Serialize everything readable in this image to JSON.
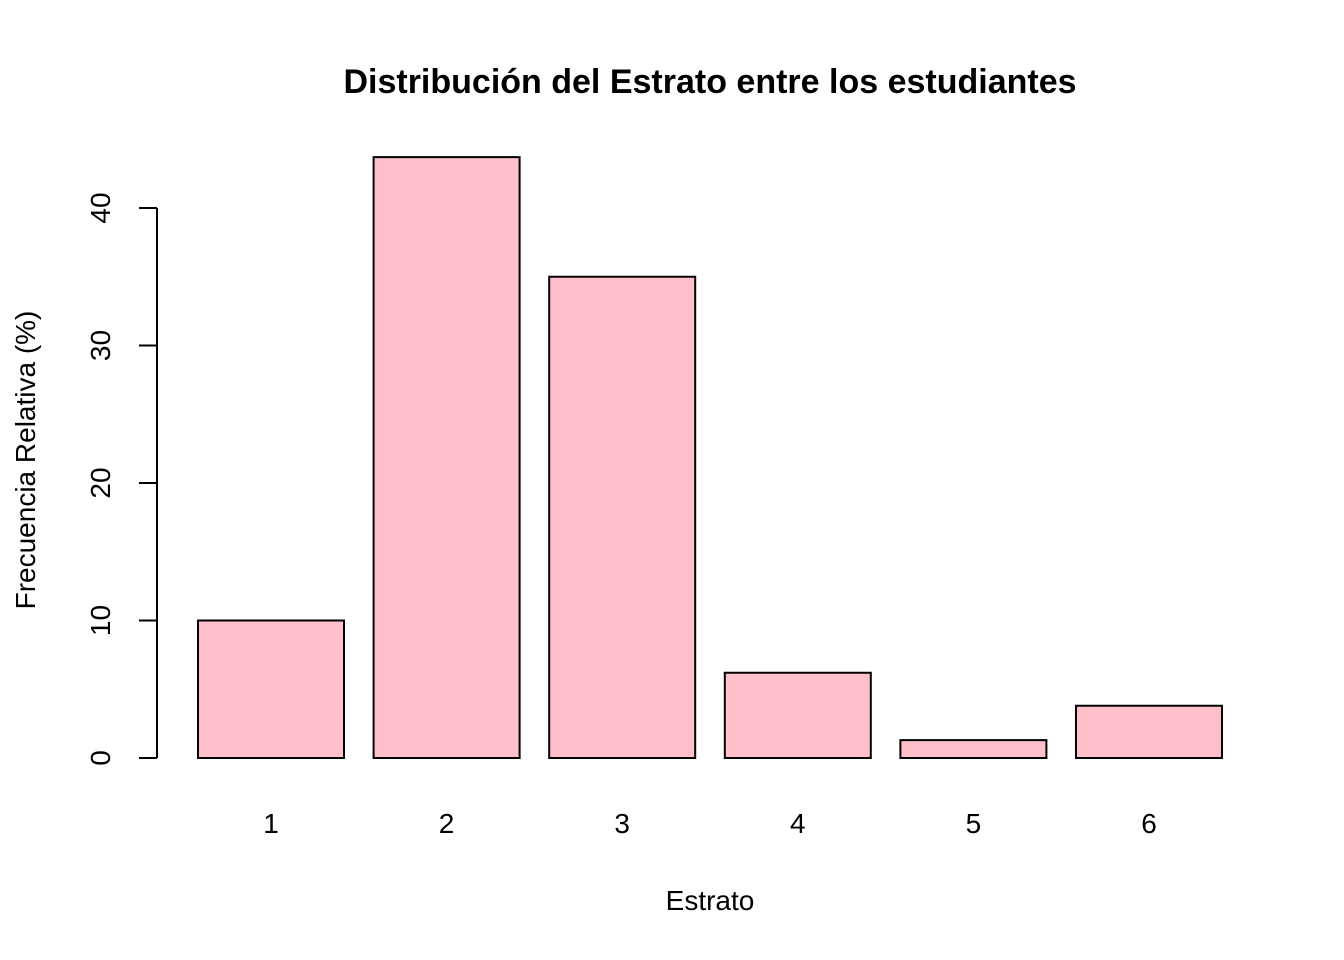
{
  "chart_data": {
    "type": "bar",
    "title": "Distribución del Estrato entre los estudiantes",
    "xlabel": "Estrato",
    "ylabel": "Frecuencia Relativa (%)",
    "categories": [
      "1",
      "2",
      "3",
      "4",
      "5",
      "6"
    ],
    "values": [
      10.0,
      43.7,
      35.0,
      6.2,
      1.3,
      3.8
    ],
    "ylim": [
      0,
      46
    ],
    "yticks": [
      "0",
      "10",
      "20",
      "30",
      "40"
    ],
    "bar_color": "#FFC0CB",
    "bar_border_color": "#000000",
    "grid": false,
    "legend": "none"
  }
}
